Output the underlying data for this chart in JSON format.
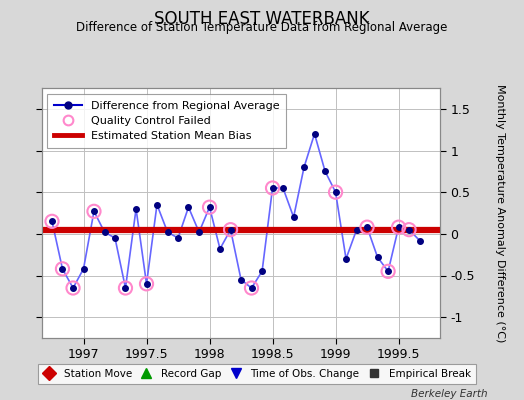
{
  "title": "SOUTH EAST WATERBANK",
  "subtitle": "Difference of Station Temperature Data from Regional Average",
  "ylabel": "Monthly Temperature Anomaly Difference (°C)",
  "xlabel_ticks": [
    1997,
    1997.5,
    1998,
    1998.5,
    1999,
    1999.5
  ],
  "xlim": [
    1996.67,
    1999.83
  ],
  "ylim": [
    -1.25,
    1.75
  ],
  "yticks": [
    -1,
    -0.5,
    0,
    0.5,
    1,
    1.5
  ],
  "bias_line_y": 0.05,
  "line_color": "#6666ff",
  "bias_color": "#cc0000",
  "dot_color": "#000080",
  "background_color": "#d8d8d8",
  "plot_bg_color": "#ffffff",
  "grid_color": "#c0c0c0",
  "x_data": [
    1996.75,
    1996.833,
    1996.917,
    1997.0,
    1997.083,
    1997.167,
    1997.25,
    1997.333,
    1997.417,
    1997.5,
    1997.583,
    1997.667,
    1997.75,
    1997.833,
    1997.917,
    1998.0,
    1998.083,
    1998.167,
    1998.25,
    1998.333,
    1998.417,
    1998.5,
    1998.583,
    1998.667,
    1998.75,
    1998.833,
    1998.917,
    1999.0,
    1999.083,
    1999.167,
    1999.25,
    1999.333,
    1999.417,
    1999.5,
    1999.583,
    1999.667
  ],
  "y_data": [
    0.15,
    -0.42,
    -0.65,
    -0.42,
    0.27,
    0.02,
    -0.05,
    -0.65,
    0.3,
    -0.6,
    0.35,
    0.02,
    -0.05,
    0.32,
    0.02,
    0.32,
    -0.18,
    0.05,
    -0.55,
    -0.65,
    -0.45,
    0.55,
    0.55,
    0.2,
    0.8,
    1.2,
    0.75,
    0.5,
    -0.3,
    0.05,
    0.08,
    -0.28,
    -0.45,
    0.08,
    0.05,
    -0.08
  ],
  "qc_fail_indices": [
    0,
    1,
    2,
    4,
    7,
    9,
    15,
    17,
    19,
    21,
    27,
    30,
    32,
    33,
    34
  ],
  "footer_text": "Berkeley Earth",
  "legend2_items": [
    {
      "label": "Station Move",
      "color": "#cc0000",
      "marker": "D",
      "markersize": 7
    },
    {
      "label": "Record Gap",
      "color": "#009900",
      "marker": "^",
      "markersize": 7
    },
    {
      "label": "Time of Obs. Change",
      "color": "#0000cc",
      "marker": "v",
      "markersize": 7
    },
    {
      "label": "Empirical Break",
      "color": "#333333",
      "marker": "s",
      "markersize": 6
    }
  ]
}
